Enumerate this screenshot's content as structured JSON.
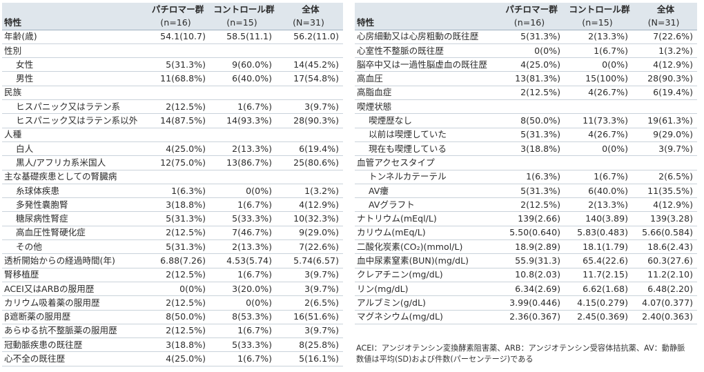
{
  "header": {
    "col_pf": "パチロマー群",
    "col_ctl": "コントロール群",
    "col_all": "全体",
    "row_label": "特性",
    "n_pf": "(n=16)",
    "n_ctl": "(n=15)",
    "n_all": "(N=31)"
  },
  "left_rows": [
    {
      "label": "年齢(歳)",
      "pf": "54.1(10.7)",
      "ctl": "58.5(11.1)",
      "all": "56.2(11.0)",
      "indent": false
    },
    {
      "label": "性別",
      "pf": "",
      "ctl": "",
      "all": "",
      "indent": false
    },
    {
      "label": "女性",
      "pf": "5(31.3%)",
      "ctl": "9(60.0%)",
      "all": "14(45.2%)",
      "indent": true
    },
    {
      "label": "男性",
      "pf": "11(68.8%)",
      "ctl": "6(40.0%)",
      "all": "17(54.8%)",
      "indent": true
    },
    {
      "label": "民族",
      "pf": "",
      "ctl": "",
      "all": "",
      "indent": false
    },
    {
      "label": "ヒスパニック又はラテン系",
      "pf": "2(12.5%)",
      "ctl": "1(6.7%)",
      "all": "3(9.7%)",
      "indent": true
    },
    {
      "label": "ヒスパニック又はラテン系以外",
      "pf": "14(87.5%)",
      "ctl": "14(93.3%)",
      "all": "28(90.3%)",
      "indent": true
    },
    {
      "label": "人種",
      "pf": "",
      "ctl": "",
      "all": "",
      "indent": false
    },
    {
      "label": "白人",
      "pf": "4(25.0%)",
      "ctl": "2(13.3%)",
      "all": "6(19.4%)",
      "indent": true
    },
    {
      "label": "黒人/アフリカ系米国人",
      "pf": "12(75.0%)",
      "ctl": "13(86.7%)",
      "all": "25(80.6%)",
      "indent": true
    },
    {
      "label": "主な基礎疾患としての腎臓病",
      "pf": "",
      "ctl": "",
      "all": "",
      "indent": false
    },
    {
      "label": "糸球体疾患",
      "pf": "1(6.3%)",
      "ctl": "0(0%)",
      "all": "1(3.2%)",
      "indent": true
    },
    {
      "label": "多発性嚢胞腎",
      "pf": "3(18.8%)",
      "ctl": "1(6.7%)",
      "all": "4(12.9%)",
      "indent": true
    },
    {
      "label": "糖尿病性腎症",
      "pf": "5(31.3%)",
      "ctl": "5(33.3%)",
      "all": "10(32.3%)",
      "indent": true
    },
    {
      "label": "高血圧性腎硬化症",
      "pf": "2(12.5%)",
      "ctl": "7(46.7%)",
      "all": "9(29.0%)",
      "indent": true
    },
    {
      "label": "その他",
      "pf": "5(31.3%)",
      "ctl": "2(13.3%)",
      "all": "7(22.6%)",
      "indent": true
    },
    {
      "label": "透析開始からの経過時間(年)",
      "pf": "6.88(7.26)",
      "ctl": "4.53(5.74)",
      "all": "5.74(6.57)",
      "indent": false
    },
    {
      "label": "腎移植歴",
      "pf": "2(12.5%)",
      "ctl": "1(6.7%)",
      "all": "3(9.7%)",
      "indent": false
    },
    {
      "label": "ACEI又はARBの服用歴",
      "pf": "0(0%)",
      "ctl": "3(20.0%)",
      "all": "3(9.7%)",
      "indent": false
    },
    {
      "label": "カリウム吸着薬の服用歴",
      "pf": "2(12.5%)",
      "ctl": "0(0%)",
      "all": "2(6.5%)",
      "indent": false
    },
    {
      "label": "β遮断薬の服用歴",
      "pf": "8(50.0%)",
      "ctl": "8(53.3%)",
      "all": "16(51.6%)",
      "indent": false
    },
    {
      "label": "あらゆる抗不整脈薬の服用歴",
      "pf": "2(12.5%)",
      "ctl": "1(6.7%)",
      "all": "3(9.7%)",
      "indent": false
    },
    {
      "label": "冠動脈疾患の既往歴",
      "pf": "3(18.8%)",
      "ctl": "5(33.3%)",
      "all": "8(25.8%)",
      "indent": false
    },
    {
      "label": "心不全の既往歴",
      "pf": "4(25.0%)",
      "ctl": "1(6.7%)",
      "all": "5(16.1%)",
      "indent": false
    }
  ],
  "right_rows": [
    {
      "label": "心房細動又は心房粗動の既往歴",
      "pf": "5(31.3%)",
      "ctl": "2(13.3%)",
      "all": "7(22.6%)",
      "indent": false
    },
    {
      "label": "心室性不整脈の既往歴",
      "pf": "0(0%)",
      "ctl": "1(6.7%)",
      "all": "1(3.2%)",
      "indent": false
    },
    {
      "label": "脳卒中又は一過性脳虚血の既往歴",
      "pf": "4(25.0%)",
      "ctl": "0(0%)",
      "all": "4(12.9%)",
      "indent": false,
      "tall": true
    },
    {
      "label": "高血圧",
      "pf": "13(81.3%)",
      "ctl": "15(100%)",
      "all": "28(90.3%)",
      "indent": false
    },
    {
      "label": "高脂血症",
      "pf": "2(12.5%)",
      "ctl": "4(26.7%)",
      "all": "6(19.4%)",
      "indent": false
    },
    {
      "label": "喫煙状態",
      "pf": "",
      "ctl": "",
      "all": "",
      "indent": false
    },
    {
      "label": "喫煙歴なし",
      "pf": "8(50.0%)",
      "ctl": "11(73.3%)",
      "all": "19(61.3%)",
      "indent": true
    },
    {
      "label": "以前は喫煙していた",
      "pf": "5(31.3%)",
      "ctl": "4(26.7%)",
      "all": "9(29.0%)",
      "indent": true
    },
    {
      "label": "現在も喫煙している",
      "pf": "3(18.8%)",
      "ctl": "0(0%)",
      "all": "3(9.7%)",
      "indent": true
    },
    {
      "label": "血管アクセスタイプ",
      "pf": "",
      "ctl": "",
      "all": "",
      "indent": false
    },
    {
      "label": "トンネルカテーテル",
      "pf": "1(6.3%)",
      "ctl": "1(6.7%)",
      "all": "2(6.5%)",
      "indent": true
    },
    {
      "label": "AV瘻",
      "pf": "5(31.3%)",
      "ctl": "6(40.0%)",
      "all": "11(35.5%)",
      "indent": true
    },
    {
      "label": "AVグラフト",
      "pf": "2(12.5%)",
      "ctl": "2(13.3%)",
      "all": "4(12.9%)",
      "indent": true
    },
    {
      "label": "ナトリウム(mEql/L)",
      "pf": "139(2.66)",
      "ctl": "140(3.89)",
      "all": "139(3.28)",
      "indent": false
    },
    {
      "label": "カリウム(mEq/L)",
      "pf": "5.50(0.640)",
      "ctl": "5.83(0.483)",
      "all": "5.66(0.584)",
      "indent": false
    },
    {
      "label": "二酸化炭素(CO₂)(mmol/L)",
      "pf": "18.9(2.89)",
      "ctl": "18.1(1.79)",
      "all": "18.6(2.43)",
      "indent": false
    },
    {
      "label": "血中尿素窒素(BUN)(mg/dL)",
      "pf": "55.9(31.3)",
      "ctl": "65.4(22.6)",
      "all": "60.3(27.6)",
      "indent": false
    },
    {
      "label": "クレアチニン(mg/dL)",
      "pf": "10.8(2.03)",
      "ctl": "11.7(2.15)",
      "all": "11.2(2.10)",
      "indent": false
    },
    {
      "label": "リン(mg/dL)",
      "pf": "6.34(2.69)",
      "ctl": "6.62(1.68)",
      "all": "6.48(2.20)",
      "indent": false
    },
    {
      "label": "アルブミン(g/dL)",
      "pf": "3.99(0.446)",
      "ctl": "4.15(0.279)",
      "all": "4.07(0.377)",
      "indent": false
    },
    {
      "label": "マグネシウム(mg/dL)",
      "pf": "2.36(0.367)",
      "ctl": "2.45(0.369)",
      "all": "2.40(0.363)",
      "indent": false
    }
  ],
  "footnote": {
    "line1": "ACEI：アンジオテンシン変換酵素阻害薬、ARB：アンジオテンシン受容体拮抗薬、AV：動静脈",
    "line2": "数値は平均(SD)および件数(パーセンテージ)である"
  }
}
